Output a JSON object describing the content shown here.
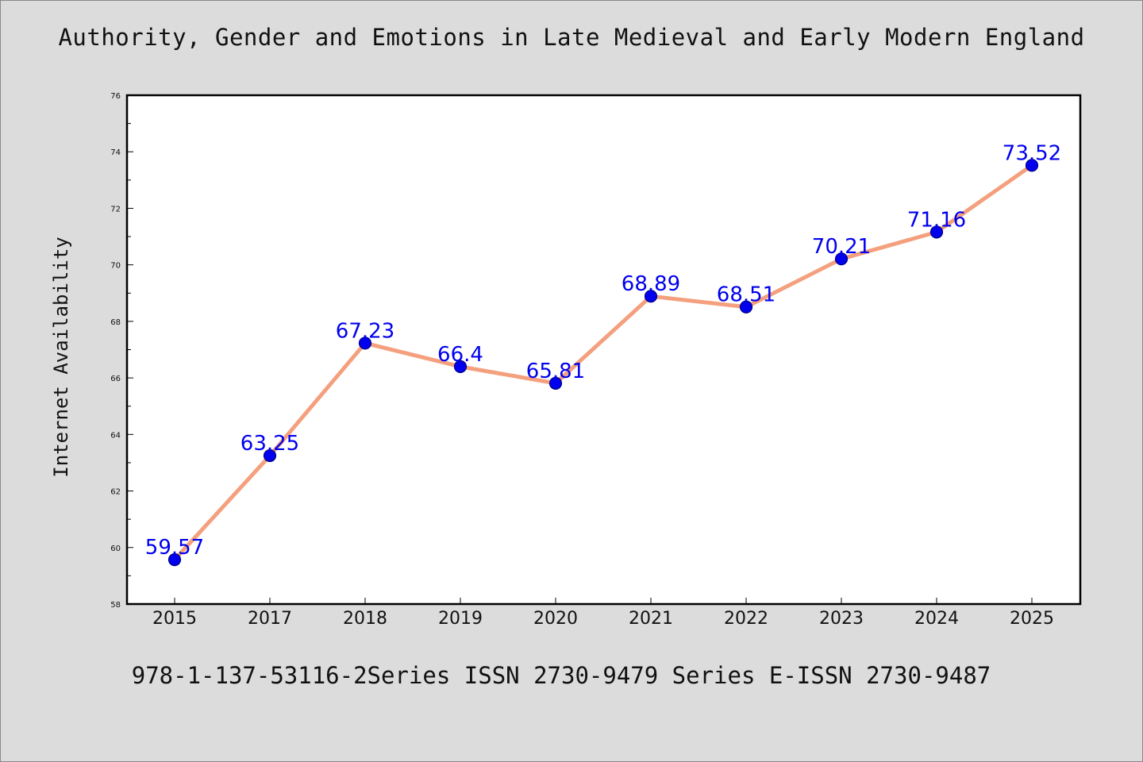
{
  "chart_data": {
    "type": "line",
    "title": "Authority, Gender and Emotions in Late Medieval and Early Modern England",
    "subtitle": "",
    "footer": "978-1-137-53116-2Series ISSN 2730-9479 Series E-ISSN 2730-9487",
    "xlabel": "",
    "ylabel": "Internet Availability",
    "categories": [
      "2015",
      "2017",
      "2018",
      "2019",
      "2020",
      "2021",
      "2022",
      "2023",
      "2024",
      "2025"
    ],
    "series": [
      {
        "values": [
          59.57,
          63.25,
          67.23,
          66.4,
          65.81,
          68.89,
          68.51,
          70.21,
          71.16,
          73.52
        ]
      }
    ],
    "data_labels": [
      "59.57",
      "63.25",
      "67.23",
      "66.4",
      "65.81",
      "68.89",
      "68.51",
      "70.21",
      "71.16",
      "73.52"
    ],
    "ylim": [
      58,
      76
    ],
    "yticks": [
      58,
      60,
      62,
      64,
      66,
      68,
      70,
      72,
      74,
      76
    ],
    "grid": false,
    "legend": "none",
    "colors": {
      "line": "#f4a07e",
      "marker": "#0000ee",
      "marker_edge": "#000080",
      "data_label": "#0000ee",
      "background": "#dcdcdc",
      "plot_background": "#ffffff"
    }
  }
}
